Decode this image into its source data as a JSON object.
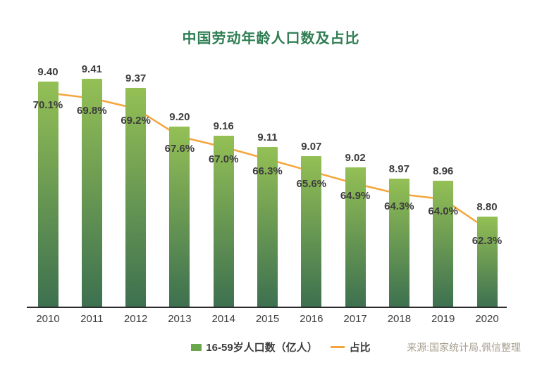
{
  "title": "中国劳动年龄人口数及占比",
  "legend": {
    "bar_label": "16-59岁人口数（亿人）",
    "line_label": "占比"
  },
  "source": "来源:国家统计局,佩信整理",
  "colors": {
    "title": "#2e7d52",
    "bar_top": "#94c055",
    "bar_bottom": "#3d7050",
    "legend_swatch": "#6aa64c",
    "line": "#f4a63d",
    "label": "#3c3c3c",
    "axis": "#2b2b2b",
    "source": "#a7a08f"
  },
  "chart_data": {
    "type": "bar+line combo",
    "title": "中国劳动年龄人口数及占比",
    "categories": [
      "2010",
      "2011",
      "2012",
      "2013",
      "2014",
      "2015",
      "2016",
      "2017",
      "2018",
      "2019",
      "2020"
    ],
    "series": [
      {
        "name": "16-59岁人口数（亿人）",
        "type": "bar",
        "values": [
          9.4,
          9.41,
          9.37,
          9.2,
          9.16,
          9.11,
          9.07,
          9.02,
          8.97,
          8.96,
          8.8
        ],
        "value_decimals": 2
      },
      {
        "name": "占比",
        "type": "line",
        "values": [
          70.1,
          69.8,
          69.2,
          67.6,
          67.0,
          66.3,
          65.6,
          64.9,
          64.3,
          64.0,
          62.3
        ],
        "value_decimals": 1,
        "value_suffix": "%"
      }
    ],
    "bar_ylim": [
      8.4,
      9.48
    ],
    "line_ylim": [
      57.8,
      71.8
    ],
    "grid": false,
    "legend_position": "bottom",
    "xlabel": "",
    "ylabel": ""
  }
}
